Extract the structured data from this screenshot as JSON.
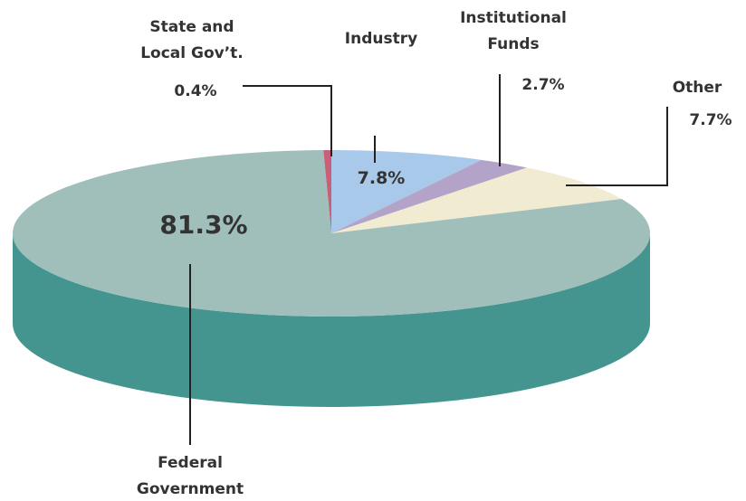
{
  "chart_data": {
    "type": "pie",
    "categories": [
      "State and Local Gov’t.",
      "Industry",
      "Institutional Funds",
      "Other",
      "Federal Government"
    ],
    "values": [
      0.4,
      7.8,
      2.7,
      7.7,
      81.3
    ],
    "value_labels": [
      "0.4%",
      "7.8%",
      "2.7%",
      "7.7%",
      "81.3%"
    ],
    "colors": [
      "#c9607a",
      "#a8c9ea",
      "#b4a3c9",
      "#f1ebd1",
      "#a0bfbb"
    ],
    "side_color": "#44958f"
  }
}
